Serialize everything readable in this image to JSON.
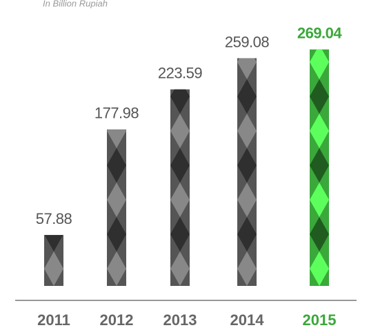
{
  "chart_data": {
    "type": "bar",
    "subtitle": "In Billion Rupiah",
    "categories": [
      "2011",
      "2012",
      "2013",
      "2014",
      "2015"
    ],
    "values": [
      57.88,
      177.98,
      223.59,
      259.08,
      269.04
    ],
    "colors": [
      "#555555",
      "#555555",
      "#555555",
      "#555555",
      "#3aa83a"
    ],
    "ylim": [
      0,
      290
    ]
  }
}
